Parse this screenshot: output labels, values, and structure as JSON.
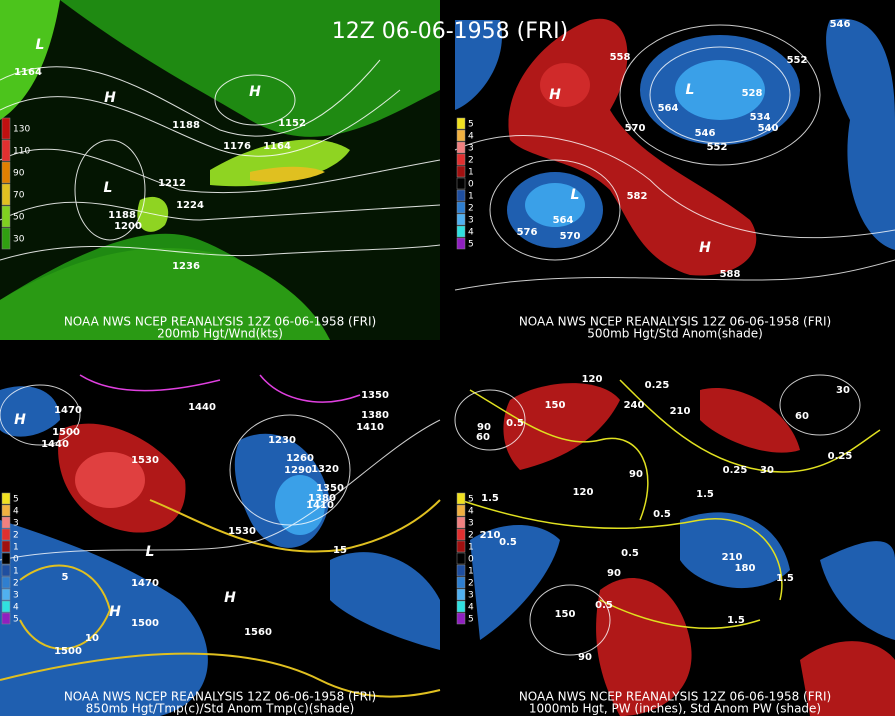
{
  "title": "12Z 06-06-1958 (FRI)",
  "panels": [
    {
      "caption": "NOAA NWS NCEP REANALYSIS 12Z 06-06-1958 (FRI)",
      "subcaption": "200mb Hgt/Wnd(kts)",
      "legend": [
        "130",
        "110",
        "90",
        "70",
        "50",
        "30"
      ],
      "contour_labels": [
        "1164",
        "1188",
        "1152",
        "1176",
        "1164",
        "1212",
        "1224",
        "1188",
        "1200",
        "1236"
      ],
      "centers": [
        "L",
        "H",
        "H",
        "L"
      ]
    },
    {
      "caption": "NOAA NWS NCEP REANALYSIS 12Z 06-06-1958 (FRI)",
      "subcaption": "500mb Hgt/Std Anom(shade)",
      "legend": [
        "5",
        "4",
        "3",
        "2",
        "1",
        "0",
        "1",
        "2",
        "3",
        "4",
        "5"
      ],
      "contour_labels": [
        "558",
        "564",
        "570",
        "546",
        "552",
        "534",
        "540",
        "528",
        "552",
        "546",
        "582",
        "576",
        "570",
        "564",
        "588"
      ],
      "centers": [
        "H",
        "L",
        "L",
        "H"
      ]
    },
    {
      "caption": "NOAA NWS NCEP REANALYSIS 12Z 06-06-1958 (FRI)",
      "subcaption": "850mb Hgt/Tmp(c)/Std Anom Tmp(c)(shade)",
      "legend": [
        "5",
        "4",
        "3",
        "2",
        "1",
        "0",
        "1",
        "2",
        "3",
        "4",
        "5"
      ],
      "contour_labels": [
        "1470",
        "1500",
        "1440",
        "1530",
        "1440",
        "1230",
        "1260",
        "1290",
        "1320",
        "1350",
        "1380",
        "1410",
        "1380",
        "1410",
        "1350",
        "1530",
        "1470",
        "1500",
        "1560",
        "1500",
        "15",
        "5",
        "10"
      ],
      "centers": [
        "H",
        "L",
        "H",
        "H"
      ]
    },
    {
      "caption": "NOAA NWS NCEP REANALYSIS 12Z 06-06-1958 (FRI)",
      "subcaption": "1000mb Hgt, PW (inches), Std Anom PW (shade)",
      "legend": [
        "5",
        "4",
        "3",
        "2",
        "1",
        "0",
        "1",
        "2",
        "3",
        "4",
        "5"
      ],
      "contour_labels": [
        "120",
        "150",
        "60",
        "90",
        "0.5",
        "1.5",
        "120",
        "90",
        "0.5",
        "210",
        "0.5",
        "0.5",
        "1.5",
        "0.25",
        "240",
        "210",
        "0.25",
        "30",
        "60",
        "30",
        "0.25",
        "1.5",
        "210",
        "180",
        "0.5",
        "90",
        "150",
        "90",
        "1.5"
      ],
      "centers": [
        "L",
        "H",
        "L",
        "H"
      ]
    }
  ]
}
